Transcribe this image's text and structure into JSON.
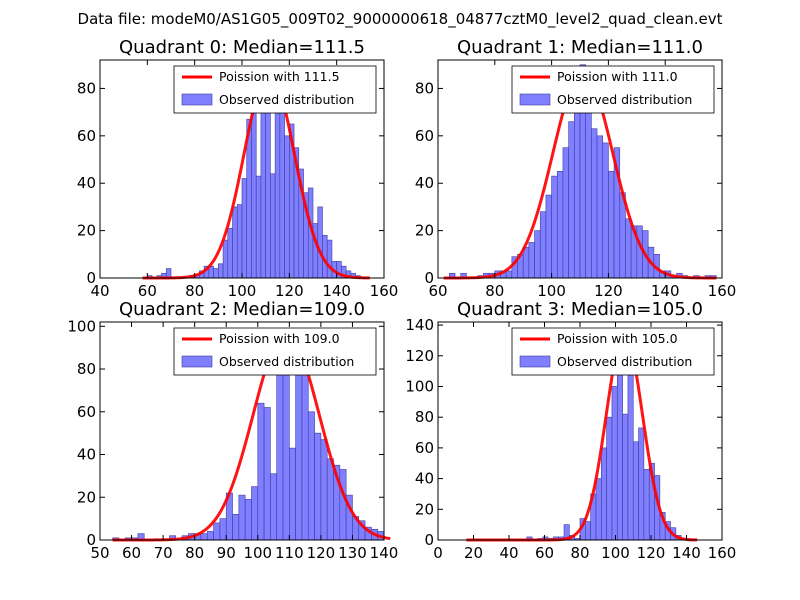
{
  "figure": {
    "suptitle": "Data file: modeM0/AS1G05_009T02_9000000618_04877cztM0_level2_quad_clean.evt",
    "colors": {
      "bar": "#7f7fff",
      "bar_edge": "#3d3d9e",
      "curve": "#ff0000"
    }
  },
  "chart_data": [
    {
      "type": "bar",
      "title": "Quadrant 0: Median=111.5",
      "legend": [
        "Poission with 111.5",
        "Observed distribution"
      ],
      "legend_loc": "top-right",
      "median": 111.5,
      "xlim": [
        40,
        160
      ],
      "ylim": [
        0,
        92
      ],
      "xticks": [
        40,
        60,
        80,
        100,
        120,
        140,
        160
      ],
      "yticks": [
        0,
        20,
        40,
        60,
        80
      ],
      "bins": [
        58,
        60,
        62,
        64,
        66,
        68,
        70,
        72,
        74,
        76,
        78,
        80,
        82,
        84,
        86,
        88,
        90,
        92,
        94,
        96,
        98,
        100,
        102,
        104,
        106,
        108,
        110,
        112,
        114,
        116,
        118,
        120,
        122,
        124,
        126,
        128,
        130,
        132,
        134,
        136,
        138,
        140,
        142,
        144,
        146,
        148,
        150,
        152
      ],
      "bin_width": 2,
      "counts": [
        0,
        1,
        0,
        1,
        2,
        4,
        0,
        0,
        0,
        0,
        1,
        1,
        3,
        5,
        5,
        4,
        6,
        16,
        21,
        30,
        31,
        42,
        67,
        70,
        43,
        84,
        80,
        44,
        72,
        84,
        60,
        65,
        55,
        46,
        36,
        38,
        23,
        30,
        18,
        16,
        7,
        7,
        5,
        3,
        2,
        1,
        0,
        0
      ],
      "curve": {
        "label": "Poission with 111.5",
        "mean": 111.5,
        "peak": 87,
        "x_range": [
          58,
          154
        ]
      }
    },
    {
      "type": "bar",
      "title": "Quadrant 1: Median=111.0",
      "legend": [
        "Poission with 111.0",
        "Observed distribution"
      ],
      "legend_loc": "top-right",
      "median": 111.0,
      "xlim": [
        60,
        160
      ],
      "ylim": [
        0,
        92
      ],
      "xticks": [
        60,
        80,
        100,
        120,
        140,
        160
      ],
      "yticks": [
        0,
        20,
        40,
        60,
        80
      ],
      "bins": [
        64,
        66,
        68,
        70,
        72,
        74,
        76,
        78,
        80,
        82,
        84,
        86,
        88,
        90,
        92,
        94,
        96,
        98,
        100,
        102,
        104,
        106,
        108,
        110,
        112,
        114,
        116,
        118,
        120,
        122,
        124,
        126,
        128,
        130,
        132,
        134,
        136,
        138,
        140,
        142,
        144,
        146,
        148,
        150,
        152,
        154,
        156
      ],
      "bin_width": 2,
      "counts": [
        2,
        0,
        2,
        0,
        0,
        1,
        2,
        2,
        3,
        3,
        3,
        9,
        10,
        13,
        15,
        20,
        28,
        35,
        43,
        45,
        55,
        66,
        70,
        90,
        80,
        63,
        60,
        57,
        45,
        55,
        36,
        25,
        22,
        22,
        20,
        13,
        10,
        3,
        3,
        1,
        2,
        1,
        0,
        1,
        0,
        1,
        1
      ],
      "curve": {
        "label": "Poission with 111.0",
        "mean": 111.0,
        "peak": 87,
        "x_range": [
          62,
          158
        ]
      }
    },
    {
      "type": "bar",
      "title": "Quadrant 2: Median=109.0",
      "legend": [
        "Poission with 109.0",
        "Observed distribution"
      ],
      "legend_loc": "top-right",
      "median": 109.0,
      "xlim": [
        50,
        140
      ],
      "ylim": [
        0,
        102
      ],
      "xticks": [
        50,
        60,
        70,
        80,
        90,
        100,
        110,
        120,
        130,
        140
      ],
      "yticks": [
        0,
        20,
        40,
        60,
        80,
        100
      ],
      "bins": [
        54,
        56,
        58,
        60,
        62,
        64,
        66,
        68,
        70,
        72,
        74,
        76,
        78,
        80,
        82,
        84,
        86,
        88,
        90,
        92,
        94,
        96,
        98,
        100,
        102,
        104,
        106,
        108,
        110,
        112,
        114,
        116,
        118,
        120,
        122,
        124,
        126,
        128,
        130,
        132,
        134,
        136,
        138
      ],
      "bin_width": 2,
      "counts": [
        1,
        0,
        1,
        1,
        3,
        0,
        0,
        0,
        0,
        2,
        0,
        2,
        3,
        3,
        3,
        4,
        8,
        10,
        22,
        12,
        21,
        19,
        25,
        64,
        62,
        31,
        87,
        83,
        43,
        87,
        84,
        60,
        50,
        47,
        38,
        35,
        33,
        21,
        11,
        9,
        6,
        5,
        4
      ],
      "curve": {
        "label": "Poission with 109.0",
        "mean": 109.0,
        "peak": 97,
        "x_range": [
          54,
          142
        ]
      }
    },
    {
      "type": "bar",
      "title": "Quadrant 3: Median=105.0",
      "legend": [
        "Poission with 105.0",
        "Observed distribution"
      ],
      "legend_loc": "top-right",
      "median": 105.0,
      "xlim": [
        0,
        160
      ],
      "ylim": [
        0,
        142
      ],
      "xticks": [
        0,
        20,
        40,
        60,
        80,
        100,
        120,
        140,
        160
      ],
      "yticks": [
        0,
        20,
        40,
        60,
        80,
        100,
        120,
        140
      ],
      "bins": [
        50,
        53,
        56,
        59,
        62,
        65,
        68,
        71,
        74,
        77,
        80,
        83,
        86,
        89,
        92,
        95,
        98,
        101,
        104,
        107,
        110,
        113,
        116,
        119,
        122,
        125,
        128,
        131,
        134,
        137
      ],
      "bin_width": 3,
      "counts": [
        2,
        0,
        1,
        2,
        1,
        2,
        2,
        10,
        3,
        1,
        14,
        12,
        30,
        40,
        60,
        80,
        100,
        122,
        82,
        131,
        64,
        73,
        46,
        50,
        42,
        18,
        12,
        8,
        3,
        1
      ],
      "curve": {
        "label": "Poission with 105.0",
        "mean": 105.0,
        "peak": 134,
        "x_range": [
          16,
          146
        ]
      }
    }
  ]
}
